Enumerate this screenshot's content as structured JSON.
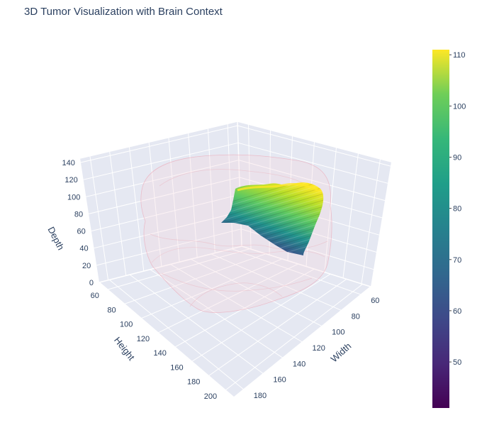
{
  "chart_data": {
    "type": "3d-volume-isosurface",
    "title": "3D Tumor Visualization with Brain Context",
    "axes": {
      "width": {
        "label": "Width",
        "ticks": [
          "60",
          "80",
          "100",
          "120",
          "140",
          "160",
          "180"
        ],
        "range": [
          50,
          190
        ]
      },
      "height": {
        "label": "Height",
        "ticks": [
          "60",
          "80",
          "100",
          "120",
          "140",
          "160",
          "180",
          "200"
        ],
        "range": [
          50,
          210
        ]
      },
      "depth": {
        "label": "Depth",
        "ticks": [
          "0",
          "20",
          "40",
          "60",
          "80",
          "100",
          "120",
          "140"
        ],
        "range": [
          0,
          145
        ]
      }
    },
    "colorbar": {
      "colorscale": "Viridis",
      "range": [
        41,
        111
      ],
      "ticks": [
        "50",
        "60",
        "70",
        "80",
        "90",
        "100",
        "110"
      ]
    },
    "series": [
      {
        "name": "",
        "kind": "brain context (translucent shell)",
        "color": "#e9a8b4",
        "opacity": 0.2
      },
      {
        "name": "",
        "kind": "tumor isosurface",
        "colorscale": "Viridis",
        "value_range": [
          41,
          111
        ]
      }
    ],
    "scene_grid": true,
    "colorbar_position": "right"
  }
}
